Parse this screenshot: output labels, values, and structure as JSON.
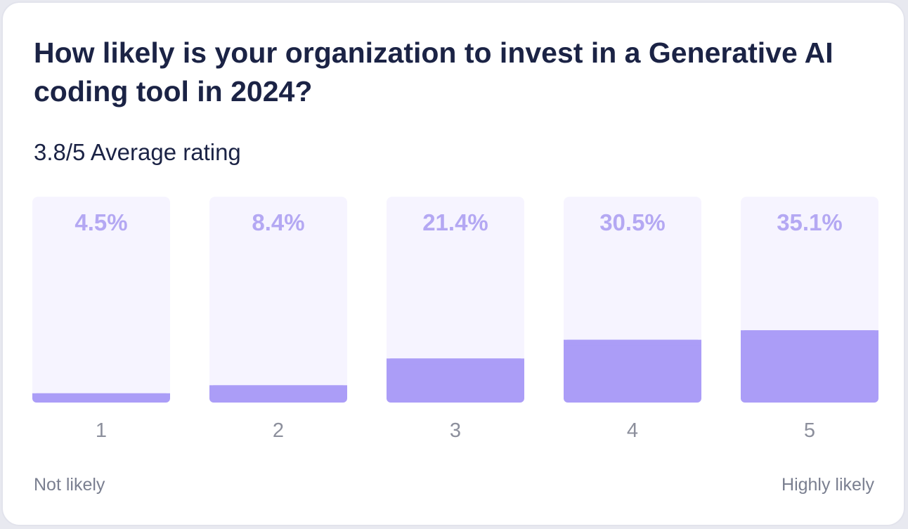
{
  "chart_data": {
    "type": "bar",
    "title": "How likely is your organization to invest in a Generative AI coding tool in 2024?",
    "subtitle": "3.8/5 Average rating",
    "categories": [
      "1",
      "2",
      "3",
      "4",
      "5"
    ],
    "values": [
      4.5,
      8.4,
      21.4,
      30.5,
      35.1
    ],
    "value_labels": [
      "4.5%",
      "8.4%",
      "21.4%",
      "30.5%",
      "35.1%"
    ],
    "ylim": [
      0,
      100
    ],
    "scale_left_label": "Not likely",
    "scale_right_label": "Highly likely",
    "grid": false,
    "colors": {
      "bar_fill": "#ab9df7",
      "bar_track": "#f6f4ff",
      "value_label": "#b4a8f3",
      "category_label": "#8c8f9c"
    }
  }
}
